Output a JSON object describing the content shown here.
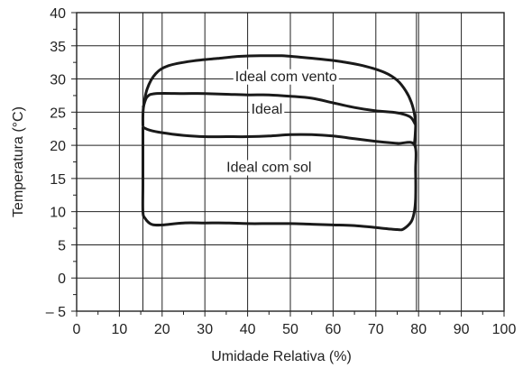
{
  "chart_data": {
    "type": "line",
    "title": "",
    "xlabel": "Umidade Relativa (%)",
    "ylabel": "Temperatura (°C)",
    "xlim": [
      0,
      100
    ],
    "ylim": [
      -5,
      40
    ],
    "x_ticks": [
      0,
      10,
      20,
      30,
      40,
      50,
      60,
      70,
      80,
      90,
      100
    ],
    "y_ticks": [
      -5,
      0,
      5,
      10,
      15,
      20,
      25,
      30,
      35,
      40
    ],
    "x_tick_labels": [
      "0",
      "10",
      "20",
      "30",
      "40",
      "50",
      "60",
      "70",
      "80",
      "90",
      "100"
    ],
    "y_tick_labels": [
      "– 5",
      "0",
      "5",
      "10",
      "15",
      "20",
      "25",
      "30",
      "35",
      "40"
    ],
    "extra_vertical_lines": [
      15.5,
      79.5
    ],
    "grid": true,
    "series": [
      {
        "points": [
          [
            15.5,
            23.0
          ],
          [
            15.6,
            25.5
          ],
          [
            16.5,
            28.5
          ],
          [
            18.5,
            30.8
          ],
          [
            21.5,
            32.0
          ],
          [
            27,
            32.7
          ],
          [
            33,
            33.1
          ],
          [
            38,
            33.4
          ],
          [
            43,
            33.5
          ],
          [
            48,
            33.5
          ],
          [
            52,
            33.3
          ],
          [
            57,
            33.0
          ],
          [
            62,
            32.6
          ],
          [
            67,
            32.0
          ],
          [
            72,
            31.0
          ],
          [
            75,
            29.8
          ],
          [
            77,
            28.2
          ],
          [
            78.3,
            26.5
          ],
          [
            79.0,
            24.8
          ],
          [
            79.3,
            23.2
          ],
          [
            79.2,
            21.5
          ],
          [
            79.0,
            20.1
          ]
        ],
        "closed": false
      },
      {
        "points": [
          [
            15.6,
            25.8
          ],
          [
            16.5,
            27.3
          ],
          [
            18.5,
            27.8
          ],
          [
            25,
            27.8
          ],
          [
            30,
            27.8
          ],
          [
            35,
            27.7
          ],
          [
            40,
            27.6
          ],
          [
            45,
            27.6
          ],
          [
            50,
            27.4
          ],
          [
            55,
            27.1
          ],
          [
            60,
            26.4
          ],
          [
            65,
            25.7
          ],
          [
            70,
            25.2
          ],
          [
            75,
            24.9
          ],
          [
            78,
            24.3
          ],
          [
            79.2,
            23.2
          ]
        ],
        "closed": false
      },
      {
        "points": [
          [
            15.6,
            22.7
          ],
          [
            17,
            22.3
          ],
          [
            20,
            21.9
          ],
          [
            25,
            21.5
          ],
          [
            30,
            21.3
          ],
          [
            35,
            21.3
          ],
          [
            40,
            21.3
          ],
          [
            45,
            21.4
          ],
          [
            50,
            21.6
          ],
          [
            55,
            21.6
          ],
          [
            60,
            21.4
          ],
          [
            65,
            21.0
          ],
          [
            70,
            20.6
          ],
          [
            75,
            20.3
          ],
          [
            79.0,
            20.1
          ],
          [
            79.3,
            16.0
          ],
          [
            79.3,
            12.0
          ],
          [
            79.0,
            10.0
          ],
          [
            78.3,
            8.5
          ],
          [
            76.5,
            7.4
          ],
          [
            75,
            7.3
          ],
          [
            70,
            7.6
          ],
          [
            65,
            7.9
          ],
          [
            60,
            8.0
          ],
          [
            55,
            8.1
          ],
          [
            50,
            8.2
          ],
          [
            45,
            8.2
          ],
          [
            40,
            8.2
          ],
          [
            35,
            8.3
          ],
          [
            30,
            8.3
          ],
          [
            25,
            8.3
          ],
          [
            20,
            8.0
          ],
          [
            17.5,
            8.1
          ],
          [
            16.0,
            9.0
          ],
          [
            15.5,
            10.0
          ],
          [
            15.5,
            14.0
          ],
          [
            15.5,
            18.0
          ],
          [
            15.5,
            22.7
          ]
        ],
        "closed": true
      }
    ],
    "annotations": [
      {
        "text": "Ideal com vento",
        "x": 49,
        "y": 29.7
      },
      {
        "text": "Ideal",
        "x": 44.5,
        "y": 24.8
      },
      {
        "text": "Ideal com sol",
        "x": 45,
        "y": 16.0
      }
    ]
  }
}
